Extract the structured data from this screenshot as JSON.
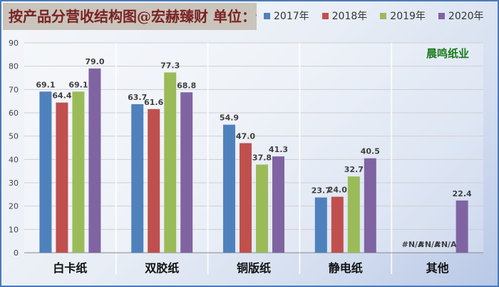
{
  "title": "按产品分营收结构图@宏赫臻财 单位：亿",
  "colors": {
    "2017年": "#4f81bd",
    "2018年": "#c0504d",
    "2019年": "#9bbb59",
    "2020年": "#8064a2"
  },
  "chart_data": {
    "type": "bar",
    "title": "按产品分营收结构图@宏赫臻财 单位：亿",
    "annotation": "晨鸣纸业",
    "categories": [
      "白卡纸",
      "双胶纸",
      "铜版纸",
      "静电纸",
      "其他"
    ],
    "series": [
      {
        "name": "2017年",
        "values": [
          69.1,
          63.7,
          54.9,
          23.7,
          null
        ],
        "labels": [
          "69.1",
          "63.7",
          "54.9",
          "23.7",
          "#N/A"
        ]
      },
      {
        "name": "2018年",
        "values": [
          64.4,
          61.6,
          47.0,
          24.0,
          null
        ],
        "labels": [
          "64.4",
          "61.6",
          "47.0",
          "24.0",
          "#N/A"
        ]
      },
      {
        "name": "2019年",
        "values": [
          69.1,
          77.3,
          37.8,
          32.7,
          null
        ],
        "labels": [
          "69.1",
          "77.3",
          "37.8",
          "32.7",
          "#N/A"
        ]
      },
      {
        "name": "2020年",
        "values": [
          79.0,
          68.8,
          41.3,
          40.5,
          22.4
        ],
        "labels": [
          "79.0",
          "68.8",
          "41.3",
          "40.5",
          "22.4"
        ]
      }
    ],
    "ylim": [
      0,
      90
    ],
    "yticks": [
      0,
      10,
      20,
      30,
      40,
      50,
      60,
      70,
      80,
      90
    ],
    "xlabel": "",
    "ylabel": "",
    "grid": true,
    "legend": "top"
  }
}
